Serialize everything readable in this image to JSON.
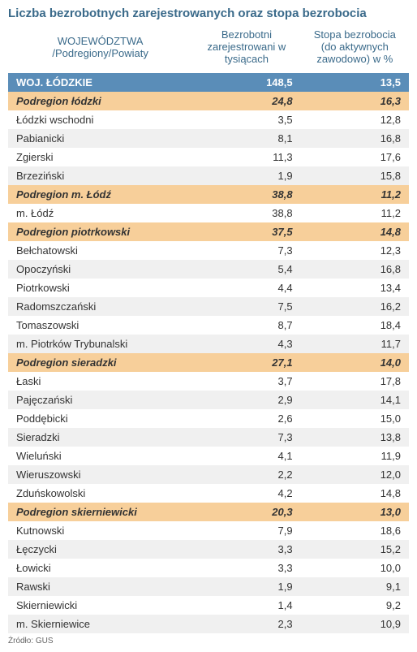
{
  "title": "Liczba bezrobotnych zarejestrowanych oraz stopa bezrobocia",
  "headers": {
    "name": "WOJEWÓDZTWA\n/Podregiony/Powiaty",
    "col1": "Bezrobotni zarejestrowani w tysiącach",
    "col2": "Stopa bezrobocia (do aktywnych zawodowo) w %"
  },
  "colors": {
    "title": "#3a6a8a",
    "header_text": "#3a6a8a",
    "woj_bg": "#5a8db8",
    "woj_text": "#ffffff",
    "podregion_bg": "#f7cf9a",
    "row_even": "#ffffff",
    "row_odd": "#f0f0f0",
    "text": "#333333"
  },
  "rows": [
    {
      "type": "woj",
      "name": "WOJ. ŁÓDZKIE",
      "v1": "148,5",
      "v2": "13,5"
    },
    {
      "type": "podregion",
      "name": "Podregion łódzki",
      "v1": "24,8",
      "v2": "16,3"
    },
    {
      "type": "powiat",
      "name": "Łódzki wschodni",
      "v1": "3,5",
      "v2": "12,8"
    },
    {
      "type": "powiat",
      "name": "Pabianicki",
      "v1": "8,1",
      "v2": "16,8"
    },
    {
      "type": "powiat",
      "name": "Zgierski",
      "v1": "11,3",
      "v2": "17,6"
    },
    {
      "type": "powiat",
      "name": "Brzeziński",
      "v1": "1,9",
      "v2": "15,8"
    },
    {
      "type": "podregion",
      "name": "Podregion m. Łódź",
      "v1": "38,8",
      "v2": "11,2"
    },
    {
      "type": "powiat",
      "name": "m. Łódź",
      "v1": "38,8",
      "v2": "11,2"
    },
    {
      "type": "podregion",
      "name": "Podregion piotrkowski",
      "v1": "37,5",
      "v2": "14,8"
    },
    {
      "type": "powiat",
      "name": "Bełchatowski",
      "v1": "7,3",
      "v2": "12,3"
    },
    {
      "type": "powiat",
      "name": "Opoczyński",
      "v1": "5,4",
      "v2": "16,8"
    },
    {
      "type": "powiat",
      "name": "Piotrkowski",
      "v1": "4,4",
      "v2": "13,4"
    },
    {
      "type": "powiat",
      "name": "Radomszczański",
      "v1": "7,5",
      "v2": "16,2"
    },
    {
      "type": "powiat",
      "name": "Tomaszowski",
      "v1": "8,7",
      "v2": "18,4"
    },
    {
      "type": "powiat",
      "name": "m. Piotrków Trybunalski",
      "v1": "4,3",
      "v2": "11,7"
    },
    {
      "type": "podregion",
      "name": "Podregion sieradzki",
      "v1": "27,1",
      "v2": "14,0"
    },
    {
      "type": "powiat",
      "name": "Łaski",
      "v1": "3,7",
      "v2": "17,8"
    },
    {
      "type": "powiat",
      "name": "Pajęczański",
      "v1": "2,9",
      "v2": "14,1"
    },
    {
      "type": "powiat",
      "name": "Poddębicki",
      "v1": "2,6",
      "v2": "15,0"
    },
    {
      "type": "powiat",
      "name": "Sieradzki",
      "v1": "7,3",
      "v2": "13,8"
    },
    {
      "type": "powiat",
      "name": "Wieluński",
      "v1": "4,1",
      "v2": "11,9"
    },
    {
      "type": "powiat",
      "name": "Wieruszowski",
      "v1": "2,2",
      "v2": "12,0"
    },
    {
      "type": "powiat",
      "name": "Zduńskowolski",
      "v1": "4,2",
      "v2": "14,8"
    },
    {
      "type": "podregion",
      "name": "Podregion skierniewicki",
      "v1": "20,3",
      "v2": "13,0"
    },
    {
      "type": "powiat",
      "name": "Kutnowski",
      "v1": "7,9",
      "v2": "18,6"
    },
    {
      "type": "powiat",
      "name": "Łęczycki",
      "v1": "3,3",
      "v2": "15,2"
    },
    {
      "type": "powiat",
      "name": "Łowicki",
      "v1": "3,3",
      "v2": "10,0"
    },
    {
      "type": "powiat",
      "name": "Rawski",
      "v1": "1,9",
      "v2": "9,1"
    },
    {
      "type": "powiat",
      "name": "Skierniewicki",
      "v1": "1,4",
      "v2": "9,2"
    },
    {
      "type": "powiat",
      "name": "m. Skierniewice",
      "v1": "2,3",
      "v2": "10,9"
    }
  ],
  "source": "Żródło: GUS"
}
